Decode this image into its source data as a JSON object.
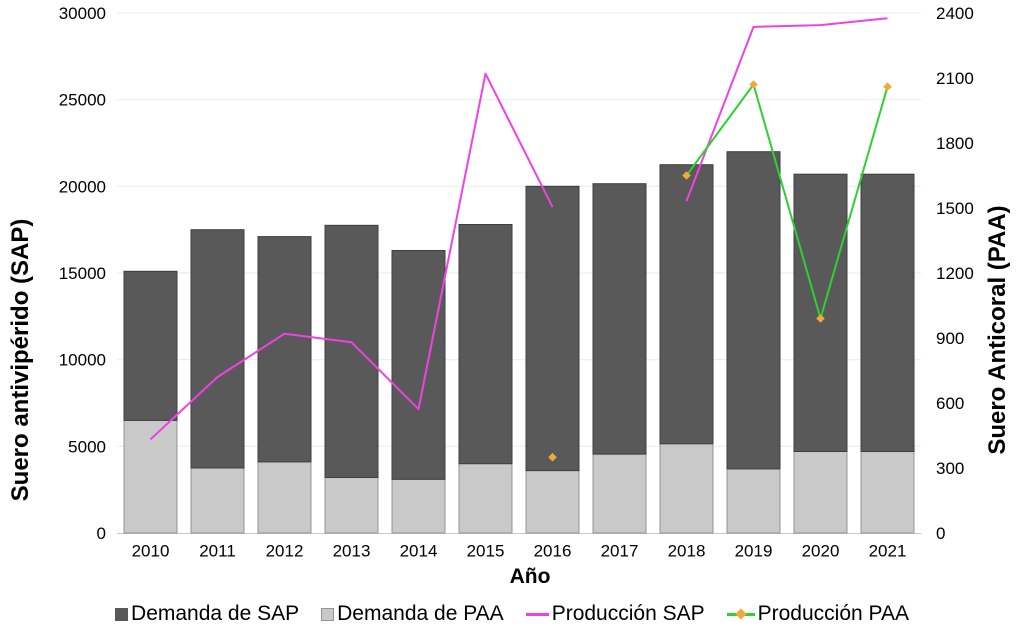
{
  "figure": {
    "x_axis_title": "Año",
    "y_left_title": "Suero antivipérido (SAP)",
    "y_right_title": "Suero Anticoral (PAA)"
  },
  "legend": [
    {
      "label": "Demanda de SAP",
      "swatch": "square-dark-gray"
    },
    {
      "label": "Demanda de PAA",
      "swatch": "square-light-gray"
    },
    {
      "label": "Producción SAP",
      "swatch": "magenta-line"
    },
    {
      "label": "Producción PAA",
      "swatch": "green-line-with-orange-diamond"
    }
  ],
  "colors": {
    "bar_demanda_sap": "#595959",
    "bar_demanda_sap_border": "#3e3e3e",
    "bar_demanda_paa": "#c9c9c9",
    "bar_demanda_paa_border": "#949494",
    "line_produccion_sap": "#ed43e3",
    "line_produccion_paa": "#2fd032",
    "marker_produccion_paa": "#f3a83c",
    "gridline": "#eaeaea",
    "axis_line": "#c8c8c8",
    "text": "#000000"
  },
  "chart_data": {
    "type": "combo: stacked bar + two lines (dual axis)",
    "title": "",
    "xlabel": "Año",
    "ylabel_left": "Suero antivipérido (SAP)",
    "ylabel_right": "Suero Anticoral (PAA)",
    "grid": "horizontal gridlines on (left axis)",
    "legend_position": "bottom",
    "categories": [
      "2010",
      "2011",
      "2012",
      "2013",
      "2014",
      "2015",
      "2016",
      "2017",
      "2018",
      "2019",
      "2020",
      "2021"
    ],
    "series": [
      {
        "name": "Demanda de SAP",
        "type": "bar",
        "stack": "top",
        "axis": "left",
        "values": [
          8600,
          13750,
          13000,
          14550,
          13200,
          13800,
          16400,
          15600,
          16100,
          18300,
          16000,
          16000
        ]
      },
      {
        "name": "Demanda de PAA",
        "type": "bar",
        "stack": "bottom",
        "axis": "left",
        "values": [
          6500,
          3750,
          4100,
          3200,
          3100,
          4000,
          3600,
          4550,
          5150,
          3700,
          4700,
          4700
        ]
      },
      {
        "name": "Producción SAP",
        "type": "line",
        "axis": "left",
        "marker": "none",
        "values": [
          5400,
          9000,
          11500,
          11000,
          7150,
          26500,
          18800,
          null,
          19150,
          29200,
          29300,
          29700
        ]
      },
      {
        "name": "Producción PAA",
        "type": "line",
        "axis": "right",
        "marker": "diamond",
        "values": [
          null,
          null,
          null,
          null,
          null,
          null,
          350,
          null,
          1650,
          2070,
          990,
          2060
        ]
      }
    ],
    "stacked_bar_totals": [
      15100,
      17500,
      17100,
      17750,
      16300,
      17800,
      20000,
      20150,
      21250,
      22000,
      20700,
      20700
    ],
    "left_axis": {
      "min": 0,
      "max": 30000,
      "step": 5000,
      "ticks": [
        "0",
        "5000",
        "10000",
        "15000",
        "20000",
        "25000",
        "30000"
      ]
    },
    "right_axis": {
      "min": 0,
      "max": 2400,
      "step": 300,
      "ticks": [
        "0",
        "300",
        "600",
        "900",
        "1200",
        "1500",
        "1800",
        "2100",
        "2400"
      ]
    }
  }
}
